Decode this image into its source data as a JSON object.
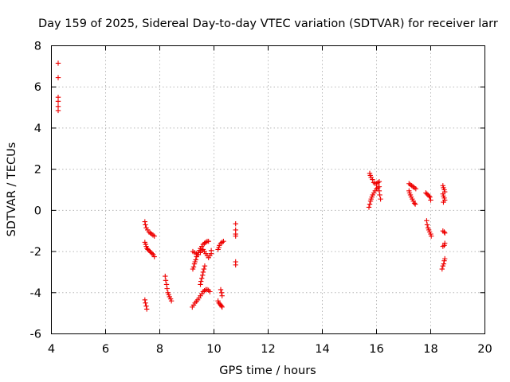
{
  "chart_data": {
    "type": "scatter",
    "title": "Day 159 of 2025, Sidereal Day-to-day VTEC variation (SDTVAR) for receiver larr",
    "xlabel": "GPS time / hours",
    "ylabel": "SDTVAR / TECUs",
    "xlim": [
      4,
      20
    ],
    "ylim": [
      -6,
      8
    ],
    "xticks": [
      "4",
      "6",
      "8",
      "10",
      "12",
      "14",
      "16",
      "18",
      "20"
    ],
    "yticks": [
      "-6",
      "-4",
      "-2",
      "0",
      "2",
      "4",
      "6",
      "8"
    ],
    "grid": true,
    "marker": "plus",
    "color": "#ee0000",
    "series": [
      {
        "name": "SDTVAR",
        "points": [
          [
            4.25,
            7.15
          ],
          [
            4.25,
            6.45
          ],
          [
            4.25,
            5.5
          ],
          [
            4.25,
            5.3
          ],
          [
            4.25,
            5.05
          ],
          [
            4.25,
            4.85
          ],
          [
            7.45,
            -0.55
          ],
          [
            7.47,
            -0.7
          ],
          [
            7.5,
            -0.85
          ],
          [
            7.55,
            -0.95
          ],
          [
            7.6,
            -1.05
          ],
          [
            7.65,
            -1.1
          ],
          [
            7.7,
            -1.15
          ],
          [
            7.75,
            -1.2
          ],
          [
            7.8,
            -1.25
          ],
          [
            7.45,
            -1.55
          ],
          [
            7.48,
            -1.65
          ],
          [
            7.5,
            -1.75
          ],
          [
            7.53,
            -1.85
          ],
          [
            7.56,
            -1.9
          ],
          [
            7.6,
            -1.95
          ],
          [
            7.64,
            -2.0
          ],
          [
            7.68,
            -2.05
          ],
          [
            7.72,
            -2.1
          ],
          [
            7.76,
            -2.15
          ],
          [
            7.8,
            -2.25
          ],
          [
            7.45,
            -4.35
          ],
          [
            7.47,
            -4.5
          ],
          [
            7.5,
            -4.65
          ],
          [
            7.52,
            -4.8
          ],
          [
            8.2,
            -3.2
          ],
          [
            8.22,
            -3.4
          ],
          [
            8.25,
            -3.6
          ],
          [
            8.27,
            -3.8
          ],
          [
            8.3,
            -4.0
          ],
          [
            8.33,
            -4.1
          ],
          [
            8.36,
            -4.2
          ],
          [
            8.4,
            -4.3
          ],
          [
            8.43,
            -4.4
          ],
          [
            9.2,
            -4.7
          ],
          [
            9.25,
            -4.6
          ],
          [
            9.3,
            -4.5
          ],
          [
            9.35,
            -4.42
          ],
          [
            9.4,
            -4.35
          ],
          [
            9.45,
            -4.25
          ],
          [
            9.5,
            -4.15
          ],
          [
            9.55,
            -4.05
          ],
          [
            9.6,
            -3.95
          ],
          [
            9.65,
            -3.9
          ],
          [
            9.7,
            -3.85
          ],
          [
            9.75,
            -3.85
          ],
          [
            9.8,
            -3.88
          ],
          [
            9.85,
            -3.95
          ],
          [
            9.22,
            -2.85
          ],
          [
            9.25,
            -2.75
          ],
          [
            9.28,
            -2.6
          ],
          [
            9.3,
            -2.5
          ],
          [
            9.33,
            -2.4
          ],
          [
            9.36,
            -2.25
          ],
          [
            9.4,
            -2.15
          ],
          [
            9.43,
            -2.05
          ],
          [
            9.46,
            -1.95
          ],
          [
            9.5,
            -1.85
          ],
          [
            9.55,
            -1.75
          ],
          [
            9.6,
            -1.65
          ],
          [
            9.65,
            -1.6
          ],
          [
            9.7,
            -1.55
          ],
          [
            9.75,
            -1.5
          ],
          [
            9.8,
            -1.5
          ],
          [
            9.22,
            -2.0
          ],
          [
            9.28,
            -2.05
          ],
          [
            9.35,
            -2.1
          ],
          [
            9.42,
            -2.15
          ],
          [
            9.5,
            -2.05
          ],
          [
            9.55,
            -1.95
          ],
          [
            9.6,
            -1.9
          ],
          [
            9.65,
            -2.0
          ],
          [
            9.7,
            -2.1
          ],
          [
            9.75,
            -2.2
          ],
          [
            9.8,
            -2.3
          ],
          [
            9.85,
            -2.2
          ],
          [
            9.9,
            -2.1
          ],
          [
            9.9,
            -1.95
          ],
          [
            9.5,
            -3.6
          ],
          [
            9.52,
            -3.45
          ],
          [
            9.55,
            -3.3
          ],
          [
            9.58,
            -3.15
          ],
          [
            9.6,
            -3.0
          ],
          [
            9.63,
            -2.85
          ],
          [
            9.66,
            -2.7
          ],
          [
            10.15,
            -1.9
          ],
          [
            10.18,
            -1.8
          ],
          [
            10.2,
            -1.7
          ],
          [
            10.25,
            -1.6
          ],
          [
            10.3,
            -1.55
          ],
          [
            10.35,
            -1.5
          ],
          [
            10.15,
            -4.4
          ],
          [
            10.18,
            -4.5
          ],
          [
            10.22,
            -4.55
          ],
          [
            10.25,
            -4.6
          ],
          [
            10.28,
            -4.65
          ],
          [
            10.3,
            -4.7
          ],
          [
            10.25,
            -3.85
          ],
          [
            10.28,
            -4.0
          ],
          [
            10.3,
            -4.15
          ],
          [
            10.8,
            -0.65
          ],
          [
            10.8,
            -0.95
          ],
          [
            10.8,
            -1.15
          ],
          [
            10.8,
            -1.25
          ],
          [
            10.8,
            -2.5
          ],
          [
            10.8,
            -2.65
          ],
          [
            15.72,
            0.15
          ],
          [
            15.75,
            0.3
          ],
          [
            15.78,
            0.45
          ],
          [
            15.8,
            0.55
          ],
          [
            15.83,
            0.65
          ],
          [
            15.86,
            0.75
          ],
          [
            15.9,
            0.85
          ],
          [
            15.95,
            0.95
          ],
          [
            16.0,
            1.05
          ],
          [
            16.05,
            1.1
          ],
          [
            16.1,
            1.15
          ],
          [
            15.75,
            1.8
          ],
          [
            15.77,
            1.7
          ],
          [
            15.8,
            1.6
          ],
          [
            15.85,
            1.5
          ],
          [
            15.9,
            1.35
          ],
          [
            15.95,
            1.3
          ],
          [
            16.0,
            1.3
          ],
          [
            16.05,
            1.35
          ],
          [
            16.1,
            1.4
          ],
          [
            16.1,
            0.95
          ],
          [
            16.12,
            0.75
          ],
          [
            16.15,
            0.55
          ],
          [
            17.2,
            1.3
          ],
          [
            17.25,
            1.25
          ],
          [
            17.3,
            1.2
          ],
          [
            17.35,
            1.15
          ],
          [
            17.4,
            1.1
          ],
          [
            17.45,
            1.05
          ],
          [
            17.2,
            0.95
          ],
          [
            17.22,
            0.85
          ],
          [
            17.25,
            0.75
          ],
          [
            17.28,
            0.65
          ],
          [
            17.32,
            0.55
          ],
          [
            17.36,
            0.45
          ],
          [
            17.4,
            0.35
          ],
          [
            17.43,
            0.3
          ],
          [
            17.82,
            0.85
          ],
          [
            17.86,
            0.8
          ],
          [
            17.9,
            0.75
          ],
          [
            17.94,
            0.7
          ],
          [
            17.97,
            0.65
          ],
          [
            18.0,
            0.5
          ],
          [
            17.85,
            -0.5
          ],
          [
            17.87,
            -0.7
          ],
          [
            17.9,
            -0.85
          ],
          [
            17.93,
            -0.95
          ],
          [
            17.96,
            -1.05
          ],
          [
            18.0,
            -1.15
          ],
          [
            18.02,
            -1.25
          ],
          [
            18.45,
            1.2
          ],
          [
            18.47,
            1.1
          ],
          [
            18.5,
            1.0
          ],
          [
            18.52,
            0.9
          ],
          [
            18.45,
            0.8
          ],
          [
            18.47,
            0.7
          ],
          [
            18.5,
            0.6
          ],
          [
            18.52,
            0.5
          ],
          [
            18.47,
            0.4
          ],
          [
            18.45,
            -1.0
          ],
          [
            18.5,
            -1.05
          ],
          [
            18.52,
            -1.1
          ],
          [
            18.45,
            -1.75
          ],
          [
            18.5,
            -1.7
          ],
          [
            18.52,
            -1.6
          ],
          [
            18.42,
            -2.85
          ],
          [
            18.45,
            -2.7
          ],
          [
            18.48,
            -2.6
          ],
          [
            18.5,
            -2.45
          ],
          [
            18.52,
            -2.35
          ]
        ]
      }
    ]
  }
}
